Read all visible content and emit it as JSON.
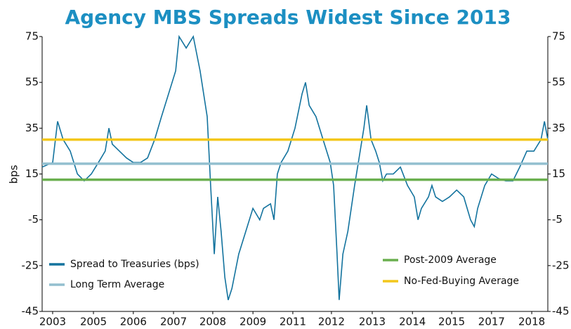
{
  "chart_data": {
    "type": "line",
    "title": "Agency MBS Spreads Widest Since 2013",
    "y_label": "bps",
    "x": [
      2002.66,
      2003.0,
      2003.16,
      2003.34,
      2003.57,
      2003.8,
      2004.02,
      2004.25,
      2004.48,
      2004.7,
      2004.82,
      2004.93,
      2005.16,
      2005.39,
      2005.61,
      2005.84,
      2006.07,
      2006.3,
      2006.52,
      2006.75,
      2006.98,
      2007.09,
      2007.32,
      2007.55,
      2007.77,
      2008.0,
      2008.11,
      2008.23,
      2008.34,
      2008.45,
      2008.57,
      2008.68,
      2008.8,
      2009.02,
      2009.25,
      2009.48,
      2009.7,
      2009.82,
      2010.05,
      2010.16,
      2010.27,
      2010.39,
      2010.61,
      2010.84,
      2011.07,
      2011.18,
      2011.3,
      2011.52,
      2011.75,
      2011.98,
      2012.09,
      2012.2,
      2012.27,
      2012.39,
      2012.55,
      2012.66,
      2012.77,
      2012.89,
      2013.07,
      2013.16,
      2013.3,
      2013.45,
      2013.57,
      2013.68,
      2013.8,
      2014.02,
      2014.25,
      2014.48,
      2014.7,
      2014.82,
      2014.93,
      2015.16,
      2015.27,
      2015.39,
      2015.61,
      2015.84,
      2016.07,
      2016.3,
      2016.52,
      2016.64,
      2016.75,
      2016.98,
      2017.2,
      2017.43,
      2017.66,
      2017.89,
      2018.11,
      2018.34,
      2018.57,
      2018.8,
      2018.91,
      2019.02
    ],
    "series": [
      {
        "name": "Spread to Treasuries (bps)",
        "color": "#13739e",
        "values": [
          18,
          20,
          38,
          30,
          25,
          15,
          12,
          15,
          20,
          25,
          35,
          28,
          25,
          22,
          20,
          20,
          22,
          30,
          40,
          50,
          60,
          75,
          70,
          75,
          60,
          40,
          10,
          -20,
          5,
          -10,
          -30,
          -40,
          -35,
          -20,
          -10,
          0,
          -5,
          0,
          2,
          -5,
          15,
          20,
          25,
          35,
          50,
          55,
          45,
          40,
          30,
          20,
          10,
          -20,
          -40,
          -20,
          -10,
          0,
          10,
          20,
          35,
          45,
          30,
          25,
          20,
          12,
          15,
          15,
          18,
          10,
          5,
          -5,
          0,
          5,
          10,
          5,
          3,
          5,
          8,
          5,
          -5,
          -8,
          0,
          10,
          15,
          13,
          12,
          12,
          18,
          25,
          25,
          30,
          38,
          30
        ]
      }
    ],
    "reference_lines": [
      {
        "name": "Long Term Average",
        "color": "#93bfcf",
        "value": 19.5
      },
      {
        "name": "Post-2009 Average",
        "color": "#6aaf4f",
        "value": 12.5
      },
      {
        "name": "No-Fed-Buying Average",
        "color": "#f3c71c",
        "value": 30
      }
    ],
    "xlim": [
      2002.66,
      2019.02
    ],
    "xticks": [
      {
        "value": 2003.0,
        "label": "2003"
      },
      {
        "value": 2004.32,
        "label": "2005"
      },
      {
        "value": 2005.61,
        "label": "2006"
      },
      {
        "value": 2006.91,
        "label": "2007"
      },
      {
        "value": 2008.18,
        "label": "2008"
      },
      {
        "value": 2009.48,
        "label": "2009"
      },
      {
        "value": 2010.77,
        "label": "2011"
      },
      {
        "value": 2012.02,
        "label": "2012"
      },
      {
        "value": 2013.34,
        "label": "2013"
      },
      {
        "value": 2014.64,
        "label": "2014"
      },
      {
        "value": 2015.91,
        "label": "2015"
      },
      {
        "value": 2017.2,
        "label": "2017"
      },
      {
        "value": 2018.5,
        "label": "2018"
      }
    ],
    "ylim": [
      -45,
      75
    ],
    "yticks": [
      -45,
      -25,
      -5,
      15,
      35,
      55,
      75
    ],
    "y2lim": [
      -45,
      75
    ],
    "y2ticks": [
      -45,
      -25,
      -5,
      15,
      35,
      55,
      75
    ]
  }
}
